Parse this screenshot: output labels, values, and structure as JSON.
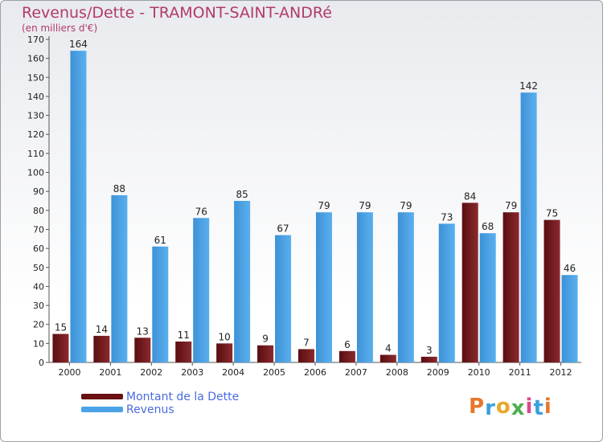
{
  "page": {
    "title": "Revenus/Dette - TRAMONT-SAINT-ANDRé",
    "subtitle": "(en milliers d'€)"
  },
  "chart_data": {
    "type": "bar",
    "title": "Revenus/Dette - TRAMONT-SAINT-ANDRé",
    "subtitle": "(en milliers d'€)",
    "categories": [
      "2000",
      "2001",
      "2002",
      "2003",
      "2004",
      "2005",
      "2006",
      "2007",
      "2008",
      "2009",
      "2010",
      "2011",
      "2012"
    ],
    "series": [
      {
        "name": "Montant de la Dette",
        "color": "#7a1f22",
        "values": [
          15,
          14,
          13,
          11,
          10,
          9,
          7,
          6,
          4,
          3,
          84,
          79,
          75
        ]
      },
      {
        "name": "Revenus",
        "color": "#4aa3e6",
        "values": [
          164,
          88,
          61,
          76,
          85,
          67,
          79,
          79,
          79,
          73,
          68,
          142,
          46
        ]
      }
    ],
    "ylim": [
      0,
      170
    ],
    "yticks": [
      0,
      10,
      20,
      30,
      40,
      50,
      60,
      70,
      80,
      90,
      100,
      110,
      120,
      130,
      140,
      150,
      160,
      170
    ],
    "grid": false,
    "legend": "bottom-left"
  },
  "legend": {
    "items": [
      {
        "label": "Montant de la Dette",
        "color": "#6a0f12"
      },
      {
        "label": "Revenus",
        "color": "#4aa3e6"
      }
    ]
  },
  "logo": {
    "text": "Proxiti",
    "letters": [
      {
        "char": "P",
        "color": "#e8762b"
      },
      {
        "char": "r",
        "color": "#3aa0de"
      },
      {
        "char": "o",
        "color": "#e8a82b"
      },
      {
        "char": "x",
        "color": "#4cae4f"
      },
      {
        "char": "i",
        "color": "#d64a8c"
      },
      {
        "char": "t",
        "color": "#3aa0de"
      },
      {
        "char": "i",
        "color": "#e8762b"
      }
    ]
  }
}
